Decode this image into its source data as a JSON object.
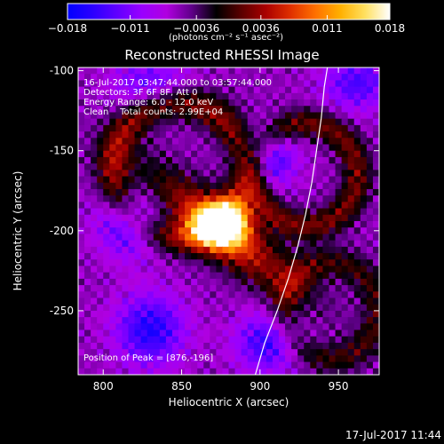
{
  "colorbar": {
    "colors": [
      "#0000ff",
      "#2a00ff",
      "#6000ff",
      "#9a00ff",
      "#b000e0",
      "#60008a",
      "#000000",
      "#5a0000",
      "#aa0000",
      "#e03000",
      "#ff7000",
      "#ffb000",
      "#ffe060",
      "#ffffff"
    ],
    "ticks": [
      "−0.018",
      "−0.011",
      "−0.0036",
      "0.0036",
      "0.011",
      "0.018"
    ],
    "tick_values": [
      -0.018,
      -0.011,
      -0.0036,
      0.0036,
      0.011,
      0.018
    ],
    "range": [
      -0.018,
      0.018
    ],
    "unit": "(photons cm⁻² s⁻¹ asec⁻²)"
  },
  "chart_data": {
    "type": "heatmap",
    "title": "Reconstructed RHESSI Image",
    "xlabel": "Heliocentric X (arcsec)",
    "ylabel": "Heliocentric Y (arcsec)",
    "xlim": [
      784,
      976
    ],
    "ylim": [
      -290,
      -98
    ],
    "xticks": [
      800,
      850,
      900,
      950
    ],
    "yticks": [
      -100,
      -150,
      -200,
      -250
    ],
    "annotations": {
      "line1": "16-Jul-2017 03:47:44.000 to 03:57:44.000",
      "line2": "Detectors: 3F 6F 8F, Att 0",
      "line3": "Energy Range: 6.0 - 12.0 keV",
      "line4": "Clean    Total counts: 2.99E+04",
      "peak": "Position of Peak = [876,-196]"
    },
    "peak_position": [
      876,
      -196
    ],
    "limb_curve": [
      [
        897,
        -290
      ],
      [
        903,
        -270
      ],
      [
        911,
        -250
      ],
      [
        918,
        -230
      ],
      [
        924,
        -210
      ],
      [
        929,
        -190
      ],
      [
        933,
        -170
      ],
      [
        936,
        -150
      ],
      [
        939,
        -130
      ],
      [
        941,
        -110
      ],
      [
        943,
        -98
      ]
    ]
  },
  "timestamp": "17-Jul-2017 11:44"
}
